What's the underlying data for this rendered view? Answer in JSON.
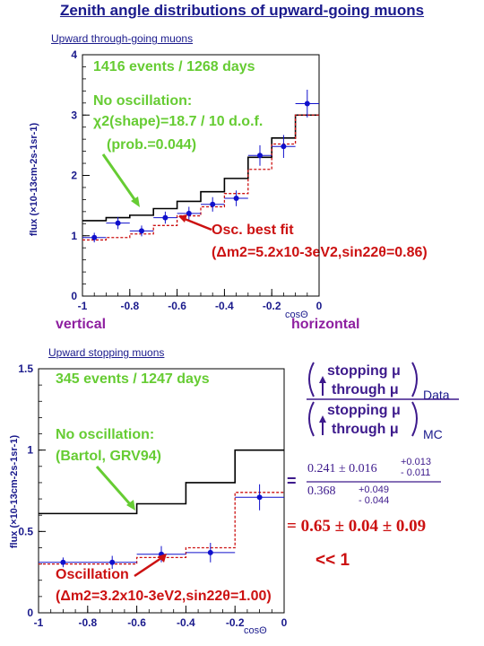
{
  "title": "Zenith angle distributions of upward-going muons",
  "panels": {
    "top": {
      "subtitle": "Upward through-going muons",
      "events": "1416 events / 1268 days",
      "noosc_line1": "No oscillation:",
      "noosc_line2": "χ2(shape)=18.7 / 10 d.o.f.",
      "noosc_line3": "(prob.=0.044)",
      "osc_line1": "Osc. best fit",
      "osc_line2": "(Δm2=5.2x10-3eV2,sin22θ=0.86)",
      "ylabel": "flux (×10-13cm-2s-1sr-1)",
      "xlabel": "cosΘ",
      "left_label": "vertical",
      "right_label": "horizontal"
    },
    "bottom": {
      "subtitle": "Upward stopping muons",
      "events": "345 events / 1247 days",
      "noosc_line1": "No oscillation:",
      "noosc_line2": "(Bartol, GRV94)",
      "osc_line1": "Oscillation",
      "osc_line2": "(Δm2=3.2x10-3eV2,sin22θ=1.00)",
      "ylabel": "flux (×10-13cm-2s-1sr-1)",
      "xlabel": "cosΘ"
    }
  },
  "ratio": {
    "num_top": "stopping μ",
    "num_bottom": "through μ",
    "num_sub": "Data",
    "den_top": "stopping μ",
    "den_bottom": "through μ",
    "den_sub": "MC",
    "equals": "=",
    "value_main": "0.241 ± 0.016",
    "value_plus": "+0.013",
    "value_minus": "- 0.011",
    "mc_main": "0.368",
    "mc_plus": "+0.049",
    "mc_minus": "- 0.044",
    "result": "=  0.65 ± 0.04 ± 0.09",
    "conclusion": "<< 1"
  },
  "colors": {
    "data": "#1010cc",
    "noosc": "#000000",
    "osc": "#cc1111",
    "green": "#66cc33"
  },
  "chart_data": [
    {
      "type": "line",
      "x_bin_edges": [
        -1.0,
        -0.9,
        -0.8,
        -0.7,
        -0.6,
        -0.5,
        -0.4,
        -0.3,
        -0.2,
        -0.1,
        0.0
      ],
      "xlim": [
        -1,
        0
      ],
      "ylim": [
        0,
        4
      ],
      "x_ticks": [
        "-1",
        "-0.8",
        "-0.6",
        "-0.4",
        "-0.2",
        "0"
      ],
      "y_ticks": [
        "0",
        "1",
        "2",
        "3",
        "4"
      ],
      "series": [
        {
          "style": "data",
          "x": [
            -0.95,
            -0.85,
            -0.75,
            -0.65,
            -0.55,
            -0.45,
            -0.35,
            -0.25,
            -0.15,
            -0.05
          ],
          "values": [
            0.97,
            1.21,
            1.08,
            1.3,
            1.37,
            1.52,
            1.62,
            2.33,
            2.48,
            3.19
          ],
          "errors": [
            0.08,
            0.1,
            0.09,
            0.1,
            0.11,
            0.12,
            0.13,
            0.17,
            0.19,
            0.23
          ]
        },
        {
          "style": "noosc",
          "values": [
            1.25,
            1.3,
            1.34,
            1.45,
            1.57,
            1.73,
            1.95,
            2.3,
            2.62,
            3.0
          ]
        },
        {
          "style": "osc",
          "values": [
            0.93,
            0.97,
            1.03,
            1.17,
            1.33,
            1.48,
            1.7,
            2.1,
            2.52,
            3.0
          ]
        }
      ]
    },
    {
      "type": "line",
      "x_bin_edges": [
        -1.0,
        -0.8,
        -0.6,
        -0.4,
        -0.2,
        0.0
      ],
      "xlim": [
        -1,
        0
      ],
      "ylim": [
        0,
        1.5
      ],
      "x_ticks": [
        "-1",
        "-0.8",
        "-0.6",
        "-0.4",
        "-0.2",
        "0"
      ],
      "y_ticks": [
        "0",
        "0.5",
        "1",
        "1.5"
      ],
      "series": [
        {
          "style": "data",
          "x": [
            -0.9,
            -0.7,
            -0.5,
            -0.3,
            -0.1
          ],
          "values": [
            0.31,
            0.31,
            0.36,
            0.37,
            0.71
          ],
          "errors": [
            0.03,
            0.04,
            0.05,
            0.06,
            0.08
          ]
        },
        {
          "style": "noosc",
          "values": [
            0.61,
            0.61,
            0.67,
            0.8,
            1.0
          ]
        },
        {
          "style": "osc",
          "values": [
            0.3,
            0.3,
            0.34,
            0.4,
            0.74
          ]
        }
      ]
    }
  ]
}
